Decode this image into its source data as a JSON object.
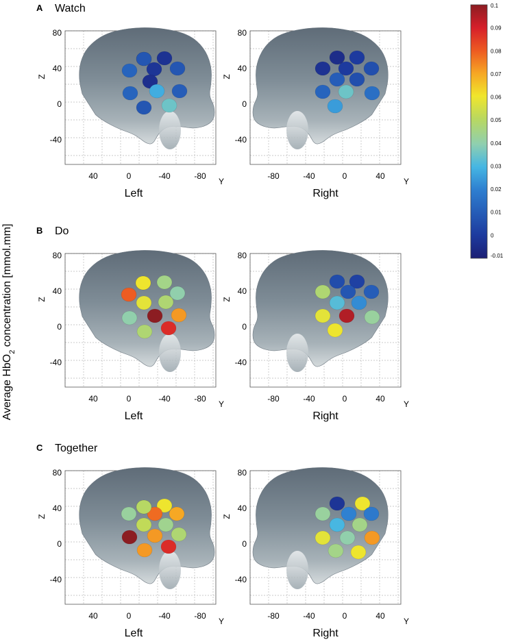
{
  "ylabel": "Average HbO2 concentration [mmol.mm]",
  "colorbar": {
    "ticks": [
      "0.1",
      "0.09",
      "0.08",
      "0.07",
      "0.06",
      "0.05",
      "0.04",
      "0.03",
      "0.02",
      "0.01",
      "0",
      "-0.01"
    ],
    "min": -0.01,
    "max": 0.1,
    "colormap": "jet"
  },
  "panels": [
    {
      "letter": "A",
      "title": "Watch",
      "left": {
        "label": "Left",
        "z_ticks": [
          "80",
          "40",
          "0",
          "-40"
        ],
        "y_ticks": [
          "40",
          "0",
          "-40",
          "-80"
        ],
        "y_axis": "Y",
        "z_axis": "Z",
        "channel_values": [
          0.005,
          -0.003,
          0.012,
          -0.002,
          0.008,
          -0.004,
          0.012,
          0.028,
          0.01,
          0.008,
          0.035,
          0.008
        ]
      },
      "right": {
        "label": "Right",
        "z_ticks": [
          "80",
          "40",
          "0",
          "-40"
        ],
        "y_ticks": [
          "-80",
          "-40",
          "0",
          "40"
        ],
        "y_axis": "Y",
        "z_axis": "Z",
        "channel_values": [
          -0.005,
          0.0,
          -0.003,
          0.0,
          0.006,
          0.01,
          0.006,
          0.012,
          0.035,
          0.015,
          0.025
        ]
      }
    },
    {
      "letter": "B",
      "title": "Do",
      "left": {
        "label": "Left",
        "z_ticks": [
          "80",
          "40",
          "0",
          "-40"
        ],
        "y_ticks": [
          "40",
          "0",
          "-40",
          "-80"
        ],
        "y_axis": "Y",
        "z_axis": "Z",
        "channel_values": [
          0.06,
          0.045,
          0.04,
          0.08,
          0.058,
          0.048,
          0.04,
          0.1,
          0.072,
          0.048,
          0.088,
          0.06
        ]
      },
      "right": {
        "label": "Right",
        "z_ticks": [
          "80",
          "40",
          "0",
          "-40"
        ],
        "y_ticks": [
          "-80",
          "-40",
          "0",
          "40"
        ],
        "y_axis": "Y",
        "z_axis": "Z",
        "channel_values": [
          0.005,
          0.002,
          0.048,
          0.008,
          0.01,
          0.032,
          0.022,
          0.058,
          0.095,
          0.042,
          0.06
        ]
      }
    },
    {
      "letter": "C",
      "title": "Together",
      "left": {
        "label": "Left",
        "z_ticks": [
          "80",
          "40",
          "0",
          "-40"
        ],
        "y_ticks": [
          "40",
          "0",
          "-40",
          "-80"
        ],
        "y_axis": "Y",
        "z_axis": "Z",
        "channel_values": [
          0.05,
          0.06,
          0.042,
          0.078,
          0.07,
          0.052,
          0.044,
          0.1,
          0.072,
          0.048,
          0.072,
          0.088,
          0.05
        ]
      },
      "right": {
        "label": "Right",
        "z_ticks": [
          "80",
          "40",
          "0",
          "-40"
        ],
        "y_ticks": [
          "-80",
          "-40",
          "0",
          "40"
        ],
        "y_axis": "Y",
        "z_axis": "Z",
        "channel_values": [
          -0.002,
          0.06,
          0.042,
          0.02,
          0.018,
          0.03,
          0.045,
          0.058,
          0.04,
          0.072,
          0.045,
          0.06
        ]
      }
    }
  ]
}
